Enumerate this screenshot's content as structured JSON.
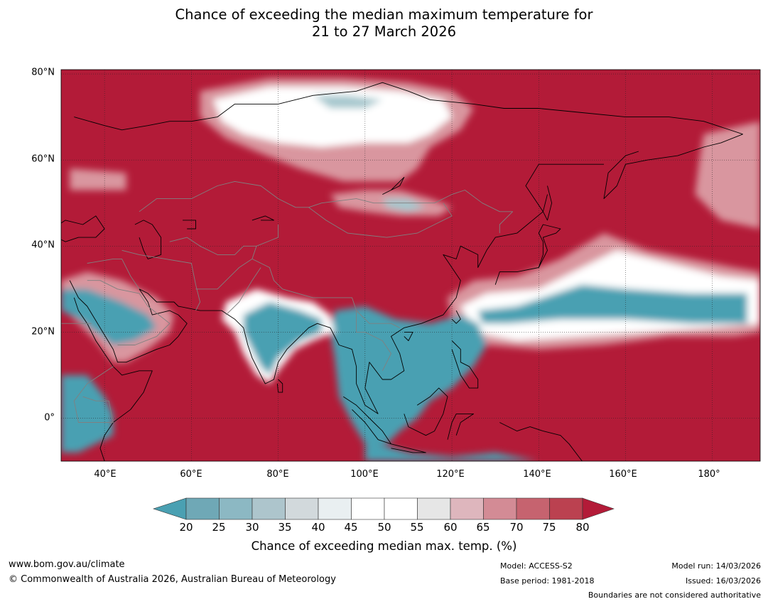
{
  "title": {
    "line1": "Chance of exceeding the median maximum temperature for",
    "line2": "21 to 27 March 2026"
  },
  "map": {
    "extent": {
      "lon_min": 30,
      "lon_max": 191,
      "lat_min": -10,
      "lat_max": 81
    },
    "lat_ticks": [
      {
        "value": 80,
        "label": "80°N"
      },
      {
        "value": 60,
        "label": "60°N"
      },
      {
        "value": 40,
        "label": "40°N"
      },
      {
        "value": 20,
        "label": "20°N"
      },
      {
        "value": 0,
        "label": "0°"
      }
    ],
    "lon_ticks": [
      {
        "value": 40,
        "label": "40°E"
      },
      {
        "value": 60,
        "label": "60°E"
      },
      {
        "value": 80,
        "label": "80°E"
      },
      {
        "value": 100,
        "label": "100°E"
      },
      {
        "value": 120,
        "label": "120°E"
      },
      {
        "value": 140,
        "label": "140°E"
      },
      {
        "value": 160,
        "label": "160°E"
      },
      {
        "value": 180,
        "label": "180°"
      }
    ],
    "colors": {
      "high": "#b31b38",
      "above": "#c44a5c",
      "slightly_above": "#d9969f",
      "neutral": "#ffffff",
      "neutral_grey": "#e6e8ea",
      "slightly_below": "#a6c7ce",
      "low": "#4aa0b2",
      "coast": "#000000",
      "border": "#808080"
    }
  },
  "colorbar": {
    "ticks": [
      "20",
      "25",
      "30",
      "35",
      "40",
      "45",
      "50",
      "55",
      "60",
      "65",
      "70",
      "75",
      "80"
    ],
    "colors": [
      "#4aa0b2",
      "#6fa8b6",
      "#8cb8c3",
      "#adc5cc",
      "#d2d9dc",
      "#e9eff1",
      "#ffffff",
      "#ffffff",
      "#e6e6e6",
      "#deb6bd",
      "#d38b95",
      "#c6636f",
      "#bb4150",
      "#b31b38"
    ],
    "label": "Chance of exceeding median max. temp. (%)"
  },
  "footer": {
    "website": "www.bom.gov.au/climate",
    "copyright": "© Commonwealth of Australia 2026, Australian Bureau of Meteorology",
    "model": "Model: ACCESS-S2",
    "base_period": "Base period: 1981-2018",
    "model_run": "Model run: 14/03/2026",
    "issued": "Issued: 16/03/2026",
    "disclaimer": "Boundaries are not considered authoritative"
  }
}
